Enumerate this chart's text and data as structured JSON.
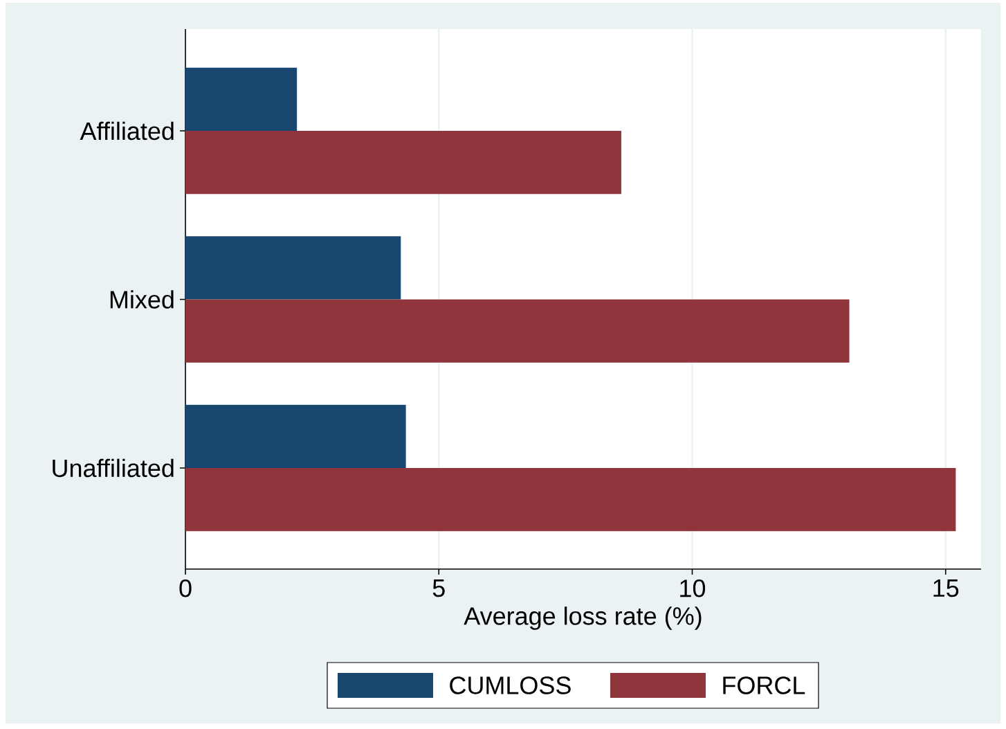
{
  "chart_data": {
    "type": "bar",
    "orientation": "horizontal",
    "xlabel": "Average loss rate (%)",
    "categories": [
      "Affiliated",
      "Mixed",
      "Unaffiliated"
    ],
    "series": [
      {
        "name": "CUMLOSS",
        "color": "#1a476f",
        "values": [
          2.2,
          4.25,
          4.35
        ]
      },
      {
        "name": "FORCL",
        "color": "#90353b",
        "values": [
          8.6,
          13.1,
          15.2
        ]
      }
    ],
    "xlim": [
      0,
      15.7
    ],
    "xticks": [
      0,
      5,
      10,
      15
    ],
    "grid": "x",
    "legend": "bottom"
  }
}
